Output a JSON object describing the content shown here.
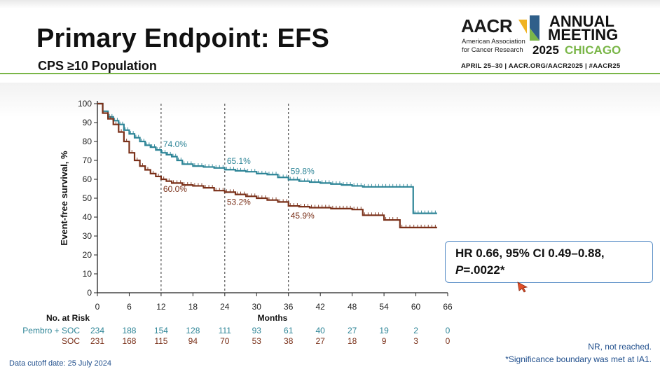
{
  "header": {
    "title": "Primary Endpoint: EFS",
    "subtitle": "CPS ≥10 Population"
  },
  "logo": {
    "aacr": "AACR",
    "assoc_line1": "American Association",
    "assoc_line2": "for Cancer Research",
    "annual": "ANNUAL",
    "meeting": "MEETING",
    "year": "2025",
    "city": "CHICAGO",
    "dates": "APRIL 25–30  |  AACR.ORG/AACR2025  |  #AACR25"
  },
  "colors": {
    "pembro": "#2e8597",
    "soc": "#7a3019",
    "accent_green": "#7ab648",
    "annotation_blue": "#1f4e8c"
  },
  "chart_data": {
    "type": "line",
    "ylabel": "Event-free survival, %",
    "xlabel": "Months",
    "xlim": [
      0,
      66
    ],
    "ylim": [
      0,
      100
    ],
    "xticks": [
      0,
      6,
      12,
      18,
      24,
      30,
      36,
      42,
      48,
      54,
      60,
      66
    ],
    "yticks": [
      0,
      10,
      20,
      30,
      40,
      50,
      60,
      70,
      80,
      90,
      100
    ],
    "reference_months": [
      12,
      24,
      36
    ],
    "series": [
      {
        "name": "Pembro + SOC",
        "color": "#2e8597",
        "x": [
          0,
          1,
          2,
          3,
          4,
          5,
          6,
          7,
          8,
          9,
          10,
          11,
          12,
          13,
          14,
          15,
          16,
          18,
          20,
          22,
          24,
          26,
          28,
          30,
          32,
          34,
          36,
          38,
          40,
          42,
          44,
          46,
          48,
          50,
          52,
          54,
          56,
          58,
          59.5,
          62,
          64
        ],
        "y": [
          100,
          96,
          93,
          91,
          89,
          86,
          84,
          82,
          80,
          78,
          77,
          75.5,
          74,
          73,
          72,
          70,
          68,
          67,
          66.5,
          66,
          65.1,
          64.5,
          64,
          63,
          62.5,
          61,
          59.8,
          59,
          58.5,
          58,
          57.5,
          57,
          56.5,
          56,
          56,
          56,
          56,
          56,
          42,
          42,
          42
        ]
      },
      {
        "name": "SOC",
        "color": "#7a3019",
        "x": [
          0,
          1,
          2,
          3,
          4,
          5,
          6,
          7,
          8,
          9,
          10,
          11,
          12,
          13,
          14,
          16,
          18,
          20,
          22,
          24,
          26,
          28,
          30,
          32,
          34,
          36,
          38,
          40,
          42,
          44,
          46,
          48,
          50,
          52,
          54,
          56,
          57,
          60,
          62,
          64
        ],
        "y": [
          100,
          95,
          92,
          89,
          85,
          80,
          74,
          70,
          67,
          65,
          63,
          61.5,
          60,
          59,
          58,
          57,
          56.5,
          55.5,
          54,
          53.2,
          52,
          51,
          50,
          49,
          48,
          45.9,
          45.5,
          45,
          45,
          44.5,
          44.5,
          44,
          41,
          41,
          38.5,
          38.5,
          34.5,
          34.5,
          34.5,
          34.5
        ]
      }
    ],
    "annotations": [
      {
        "series": "Pembro + SOC",
        "x": 12,
        "text": "74.0%"
      },
      {
        "series": "Pembro + SOC",
        "x": 24,
        "text": "65.1%"
      },
      {
        "series": "Pembro + SOC",
        "x": 36,
        "text": "59.8%"
      },
      {
        "series": "SOC",
        "x": 12,
        "text": "60.0%"
      },
      {
        "series": "SOC",
        "x": 24,
        "text": "53.2%"
      },
      {
        "series": "SOC",
        "x": 36,
        "text": "45.9%"
      }
    ],
    "risk_table": {
      "heading": "No. at Risk",
      "rows": [
        {
          "label": "Pembro + SOC",
          "color": "#2e8597",
          "values": [
            234,
            188,
            154,
            128,
            111,
            93,
            61,
            40,
            27,
            19,
            2,
            0
          ]
        },
        {
          "label": "SOC",
          "color": "#7a3019",
          "values": [
            231,
            168,
            115,
            94,
            70,
            53,
            38,
            27,
            18,
            9,
            3,
            0
          ]
        }
      ]
    }
  },
  "hr_box": {
    "line1": "HR 0.66, 95% CI 0.49–0.88,",
    "p_label": "P",
    "p_value": "=.0022*"
  },
  "footnotes": {
    "nr": "NR, not reached.",
    "significance": "*Significance boundary was met at IA1.",
    "cutoff": "Data cutoff date: 25 July 2024"
  }
}
